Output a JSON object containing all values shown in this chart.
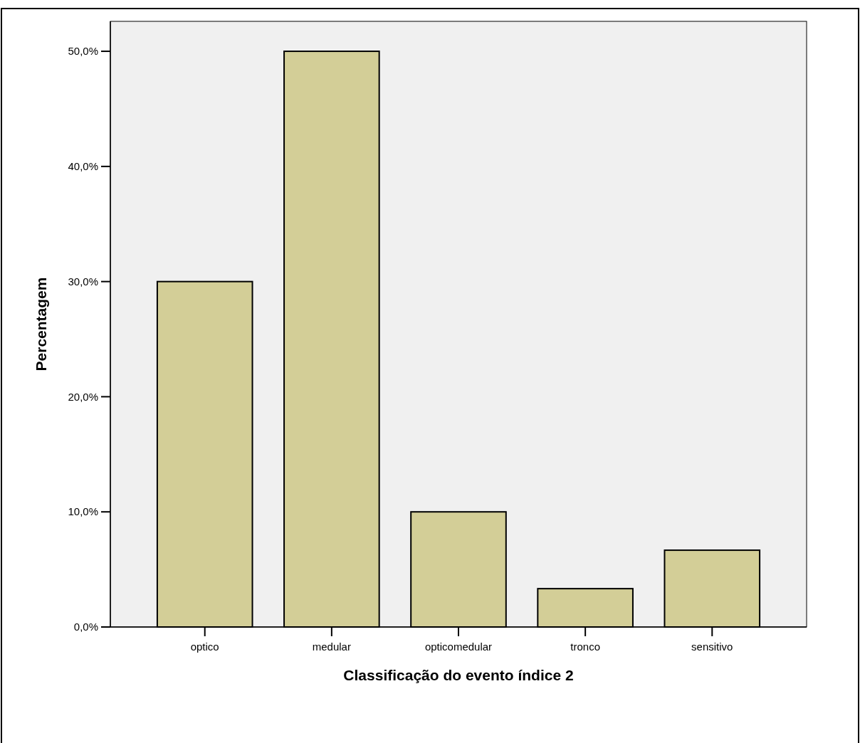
{
  "chart_data": {
    "type": "bar",
    "xlabel": "Classificação do evento índice 2",
    "ylabel": "Percentagem",
    "categories": [
      "optico",
      "medular",
      "opticomedular",
      "tronco",
      "sensitivo"
    ],
    "values": [
      30,
      50,
      10,
      3.33,
      6.67
    ],
    "color": "#d3ce97",
    "ylim": [
      0,
      52.6
    ],
    "yticks": [
      {
        "value": 0,
        "label": "0,0%"
      },
      {
        "value": 10,
        "label": "10,0%"
      },
      {
        "value": 20,
        "label": "20,0%"
      },
      {
        "value": 30,
        "label": "30,0%"
      },
      {
        "value": 40,
        "label": "40,0%"
      },
      {
        "value": 50,
        "label": "50,0%"
      }
    ],
    "grid": false
  }
}
